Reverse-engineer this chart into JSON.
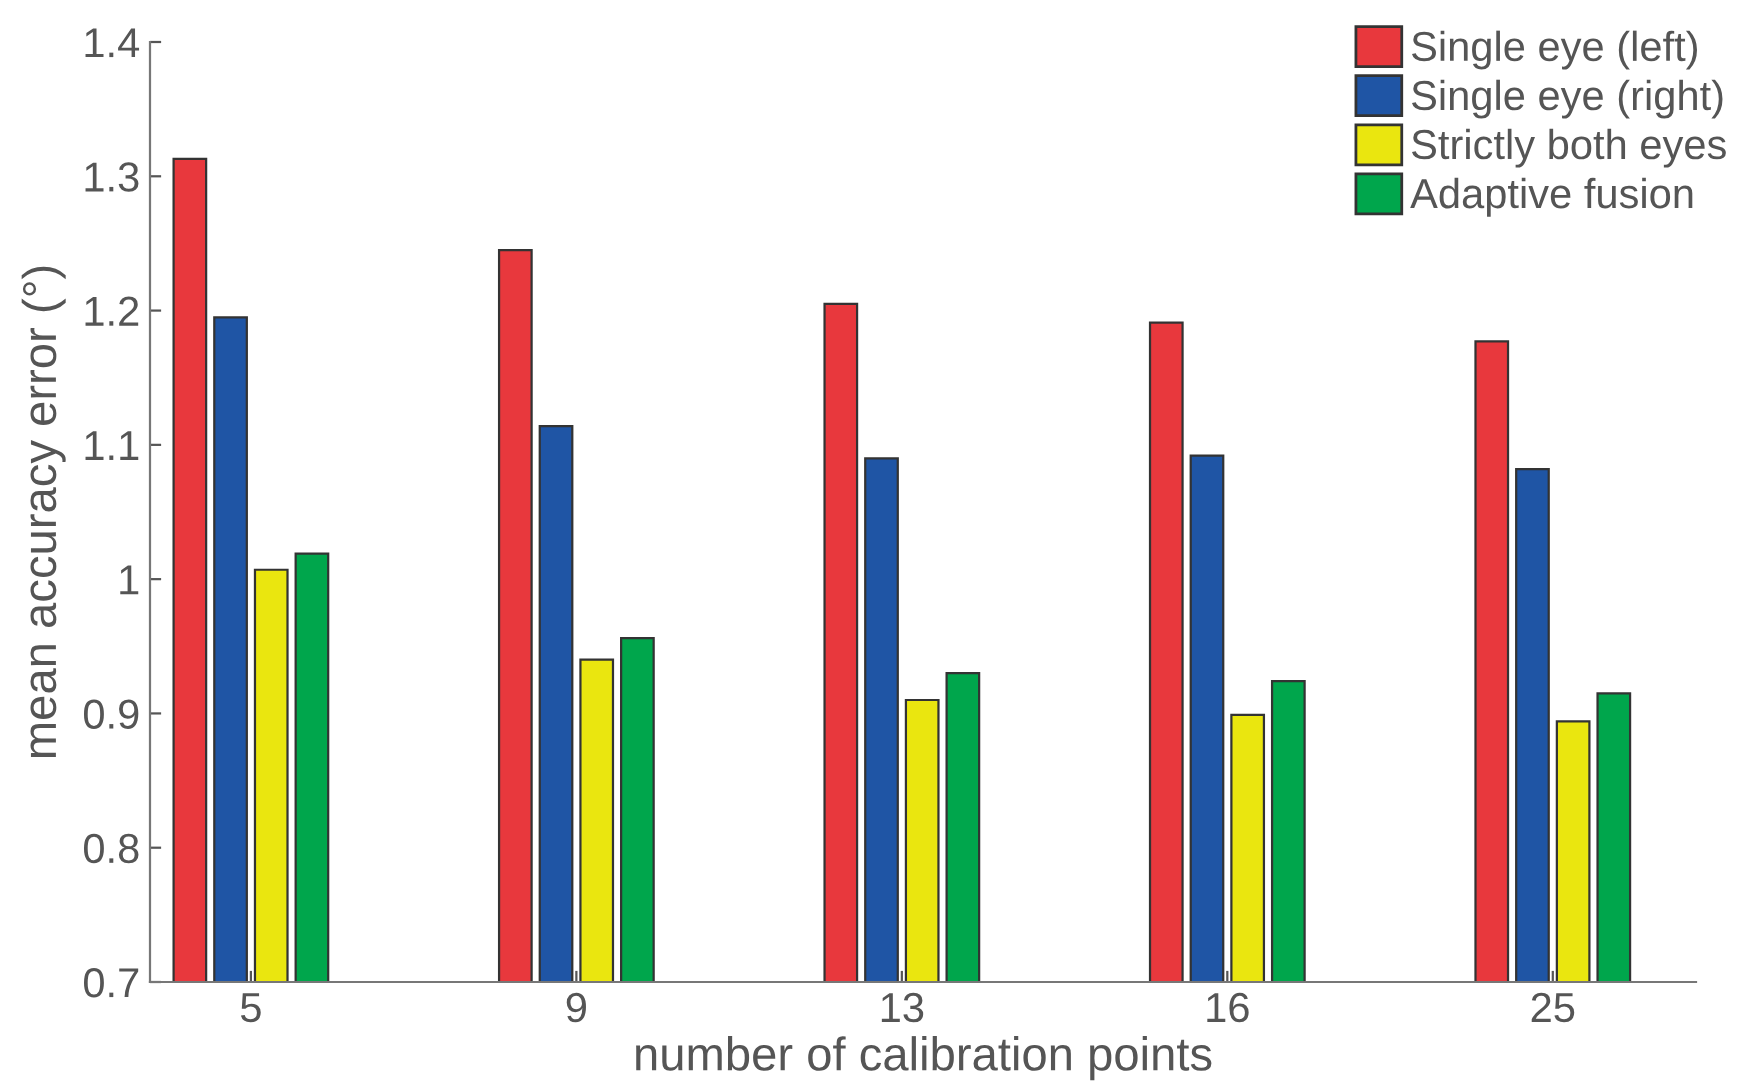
{
  "chart_data": {
    "type": "bar",
    "xlabel": "number of calibration points",
    "ylabel": "mean accuracy error (°)",
    "categories": [
      "5",
      "9",
      "13",
      "16",
      "25"
    ],
    "series": [
      {
        "name": "Single eye (left)",
        "color": "#e8383d",
        "values": [
          1.313,
          1.245,
          1.205,
          1.191,
          1.177
        ]
      },
      {
        "name": "Single eye (right)",
        "color": "#1f55a5",
        "values": [
          1.195,
          1.114,
          1.09,
          1.092,
          1.082
        ]
      },
      {
        "name": "Strictly both eyes",
        "color": "#eae60f",
        "values": [
          1.007,
          0.94,
          0.91,
          0.899,
          0.894
        ]
      },
      {
        "name": "Adaptive fusion",
        "color": "#00a64c",
        "values": [
          1.019,
          0.956,
          0.93,
          0.924,
          0.915
        ]
      }
    ],
    "ylim": [
      0.7,
      1.4
    ],
    "yticks": [
      0.7,
      0.8,
      0.9,
      1,
      1.1,
      1.2,
      1.3,
      1.4
    ],
    "grid": false,
    "legend": "top right"
  }
}
